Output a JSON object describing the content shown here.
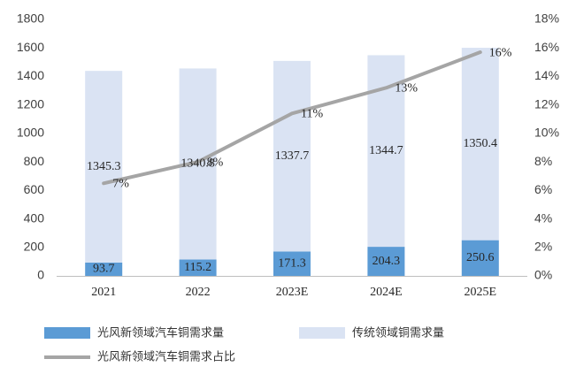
{
  "chart_data": {
    "type": "bar",
    "stacked": true,
    "categories": [
      "2021",
      "2022",
      "2023E",
      "2024E",
      "2025E"
    ],
    "series": [
      {
        "name": "光风新领域汽车铜需求量",
        "type": "bar",
        "axis": "left",
        "color": "#5b9bd5",
        "values": [
          93.7,
          115.2,
          171.3,
          204.3,
          250.6
        ],
        "labels": [
          "93.7",
          "115.2",
          "171.3",
          "204.3",
          "250.6"
        ]
      },
      {
        "name": "传统领域铜需求量",
        "type": "bar",
        "axis": "left",
        "color": "#dae3f3",
        "values": [
          1345.3,
          1340.8,
          1337.7,
          1344.7,
          1350.4
        ],
        "labels": [
          "1345.3",
          "1340.8",
          "1337.7",
          "1344.7",
          "1350.4"
        ]
      },
      {
        "name": "光风新领域汽车铜需求占比",
        "type": "line",
        "axis": "right",
        "color": "#a5a5a5",
        "values": [
          6.5,
          8.0,
          11.4,
          13.2,
          15.7
        ],
        "labels": [
          "7%",
          "8%",
          "11%",
          "13%",
          "16%"
        ]
      }
    ],
    "y_left": {
      "min": 0,
      "max": 1800,
      "ticks": [
        "0",
        "200",
        "400",
        "600",
        "800",
        "1000",
        "1200",
        "1400",
        "1600",
        "1800"
      ]
    },
    "y_right": {
      "min": 0,
      "max": 18,
      "ticks": [
        "0%",
        "2%",
        "4%",
        "6%",
        "8%",
        "10%",
        "12%",
        "14%",
        "16%",
        "18%"
      ]
    },
    "legend_position": "bottom",
    "grid": false
  }
}
